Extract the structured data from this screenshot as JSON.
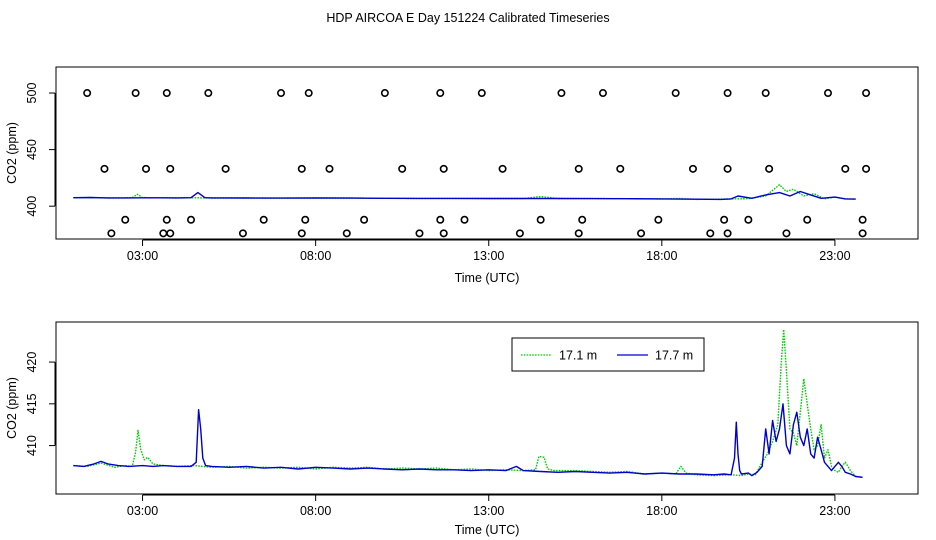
{
  "title": "HDP AIRCOA E  Day 151224  Calibrated Timeseries",
  "colors": {
    "green": "#00cc00",
    "blue": "#0000cc",
    "axis": "#000000"
  },
  "chart_data": [
    {
      "type": "scatter",
      "xlabel": "Time (UTC)",
      "ylabel": "CO2 (ppm)",
      "xlim": [
        0.5,
        25.4
      ],
      "ylim": [
        371,
        523
      ],
      "xticks": [
        3,
        8,
        13,
        18,
        23
      ],
      "xtick_labels": [
        "03:00",
        "08:00",
        "13:00",
        "18:00",
        "23:00"
      ],
      "yticks": [
        400,
        450,
        500
      ],
      "ytick_labels": [
        "400",
        "450",
        "500"
      ],
      "grid": false,
      "legend": "none",
      "reference_points": {
        "x": [
          1.4,
          1.9,
          2.1,
          2.5,
          2.8,
          3.1,
          3.6,
          3.7,
          3.7,
          3.8,
          3.8,
          4.4,
          4.9,
          5.4,
          5.9,
          6.5,
          7.0,
          7.6,
          7.6,
          7.7,
          7.8,
          8.4,
          8.9,
          9.4,
          10.0,
          10.5,
          11.0,
          11.6,
          11.6,
          11.7,
          11.7,
          12.3,
          12.8,
          13.4,
          13.9,
          14.5,
          15.1,
          15.6,
          15.6,
          15.7,
          16.3,
          16.8,
          17.4,
          17.9,
          18.4,
          18.9,
          19.4,
          19.8,
          19.9,
          19.9,
          19.9,
          20.5,
          21.0,
          21.1,
          21.6,
          22.2,
          22.8,
          23.3,
          23.8,
          23.8,
          23.9,
          23.9
        ]
      },
      "series": [
        {
          "name": "",
          "color": "green",
          "x": [
            1.0,
            1.5,
            2.0,
            2.5,
            2.7,
            2.85,
            3.0,
            3.5,
            4.0,
            4.5,
            5.0,
            6.0,
            7.0,
            8.0,
            9.0,
            10.0,
            11.0,
            12.0,
            13.0,
            14.0,
            14.5,
            15.0,
            16.0,
            17.0,
            18.0,
            18.5,
            19.0,
            19.5,
            20.0,
            20.5,
            21.0,
            21.4,
            21.6,
            21.8,
            22.1,
            22.4,
            22.7,
            23.0,
            23.3,
            23.6
          ],
          "y": [
            407.5,
            407.6,
            407.2,
            407.3,
            407.6,
            410.5,
            407.6,
            407.4,
            407.3,
            407.4,
            407.2,
            407.3,
            407.1,
            407.2,
            407.2,
            407.0,
            406.9,
            406.9,
            406.8,
            406.8,
            408.5,
            406.8,
            406.7,
            406.6,
            406.4,
            406.8,
            406.0,
            406.2,
            406.4,
            406.6,
            409.0,
            419.0,
            413.0,
            415.0,
            409.0,
            411.0,
            406.5,
            408.0,
            406.5,
            406.2
          ]
        },
        {
          "name": "",
          "color": "blue",
          "x": [
            1.0,
            1.5,
            2.0,
            2.5,
            3.0,
            3.5,
            4.0,
            4.4,
            4.6,
            4.8,
            5.0,
            6.0,
            7.0,
            8.0,
            9.0,
            10.0,
            11.0,
            12.0,
            13.0,
            14.0,
            15.0,
            16.0,
            17.0,
            18.0,
            19.0,
            19.7,
            20.0,
            20.2,
            20.6,
            21.0,
            21.4,
            21.7,
            22.0,
            22.3,
            22.6,
            23.0,
            23.3,
            23.6
          ],
          "y": [
            407.5,
            407.7,
            407.3,
            407.3,
            407.4,
            407.4,
            407.3,
            407.5,
            412.0,
            407.5,
            407.3,
            407.2,
            407.1,
            407.2,
            407.1,
            407.0,
            406.9,
            406.9,
            406.8,
            406.8,
            406.8,
            406.7,
            406.6,
            406.4,
            406.2,
            406.0,
            406.4,
            409.0,
            407.0,
            410.0,
            412.0,
            409.0,
            413.0,
            410.0,
            407.0,
            408.0,
            406.4,
            406.3
          ]
        }
      ]
    },
    {
      "type": "line",
      "xlabel": "Time (UTC)",
      "ylabel": "CO2 (ppm)",
      "xlim": [
        0.5,
        25.4
      ],
      "ylim": [
        404.2,
        424.8
      ],
      "xticks": [
        3,
        8,
        13,
        18,
        23
      ],
      "xtick_labels": [
        "03:00",
        "08:00",
        "13:00",
        "18:00",
        "23:00"
      ],
      "yticks": [
        410,
        415,
        420
      ],
      "ytick_labels": [
        "410",
        "415",
        "420"
      ],
      "grid": false,
      "legend": "top-right",
      "series": [
        {
          "name": "17.1 m",
          "color": "green",
          "x": [
            1.0,
            1.4,
            1.8,
            2.2,
            2.5,
            2.7,
            2.8,
            2.87,
            2.95,
            3.05,
            3.15,
            3.3,
            3.6,
            4.0,
            4.5,
            5.0,
            5.5,
            6.0,
            6.5,
            7.0,
            7.5,
            8.0,
            8.5,
            9.0,
            9.5,
            10.0,
            10.5,
            11.0,
            11.5,
            12.0,
            12.5,
            13.0,
            13.5,
            14.0,
            14.35,
            14.45,
            14.6,
            14.7,
            14.9,
            15.5,
            16.0,
            16.5,
            17.0,
            17.5,
            18.0,
            18.4,
            18.55,
            18.7,
            19.0,
            19.5,
            20.0,
            20.3,
            20.5,
            20.7,
            20.9,
            21.05,
            21.2,
            21.35,
            21.45,
            21.52,
            21.6,
            21.7,
            21.8,
            21.9,
            22.0,
            22.1,
            22.2,
            22.3,
            22.4,
            22.5,
            22.6,
            22.7,
            22.8,
            22.9,
            23.0,
            23.1,
            23.2,
            23.3,
            23.45,
            23.6,
            23.8
          ],
          "y": [
            407.6,
            407.5,
            407.9,
            407.4,
            407.6,
            407.5,
            409.2,
            411.8,
            409.5,
            408.3,
            408.6,
            407.8,
            407.6,
            407.5,
            407.6,
            407.4,
            407.5,
            407.3,
            407.4,
            407.3,
            407.4,
            407.2,
            407.4,
            407.3,
            407.4,
            407.2,
            407.3,
            407.2,
            407.3,
            407.1,
            407.2,
            407.0,
            407.1,
            407.0,
            407.1,
            408.7,
            408.6,
            407.2,
            407.0,
            407.0,
            406.9,
            406.8,
            406.9,
            406.6,
            406.7,
            406.6,
            407.5,
            406.7,
            406.5,
            406.4,
            406.5,
            406.4,
            406.6,
            406.5,
            408.0,
            409.0,
            410.5,
            412.5,
            420.0,
            423.9,
            419.0,
            412.0,
            411.5,
            410.0,
            414.0,
            418.0,
            415.0,
            412.0,
            409.5,
            410.0,
            412.5,
            408.5,
            409.5,
            407.5,
            407.0,
            406.8,
            407.5,
            408.0,
            407.0,
            406.3,
            406.2
          ]
        },
        {
          "name": "17.7 m",
          "color": "blue",
          "x": [
            1.0,
            1.3,
            1.6,
            1.8,
            2.0,
            2.3,
            2.6,
            3.0,
            3.3,
            3.6,
            4.0,
            4.4,
            4.55,
            4.62,
            4.68,
            4.74,
            4.82,
            5.0,
            5.5,
            6.0,
            6.5,
            7.0,
            7.5,
            8.0,
            8.5,
            9.0,
            9.5,
            10.0,
            10.5,
            11.0,
            11.5,
            12.0,
            12.5,
            13.0,
            13.5,
            13.8,
            14.0,
            14.5,
            15.0,
            15.5,
            16.0,
            16.5,
            17.0,
            17.5,
            18.0,
            18.5,
            19.0,
            19.5,
            19.8,
            20.0,
            20.1,
            20.15,
            20.2,
            20.25,
            20.3,
            20.5,
            20.6,
            20.75,
            20.9,
            21.0,
            21.1,
            21.2,
            21.3,
            21.4,
            21.5,
            21.6,
            21.7,
            21.8,
            21.9,
            22.0,
            22.1,
            22.2,
            22.3,
            22.4,
            22.5,
            22.6,
            22.7,
            22.8,
            22.9,
            23.0,
            23.1,
            23.2,
            23.3,
            23.45,
            23.6,
            23.8
          ],
          "y": [
            407.6,
            407.5,
            407.8,
            408.1,
            407.8,
            407.6,
            407.5,
            407.6,
            407.5,
            407.6,
            407.5,
            407.5,
            408.0,
            414.3,
            412.0,
            408.5,
            407.6,
            407.5,
            407.4,
            407.5,
            407.3,
            407.4,
            407.2,
            407.4,
            407.3,
            407.2,
            407.3,
            407.2,
            407.1,
            407.2,
            407.1,
            407.1,
            407.0,
            407.1,
            407.0,
            407.5,
            407.0,
            406.9,
            406.8,
            406.9,
            406.8,
            406.7,
            406.8,
            406.6,
            406.7,
            406.6,
            406.6,
            406.5,
            406.6,
            406.5,
            408.5,
            412.8,
            409.0,
            407.0,
            406.6,
            406.7,
            406.4,
            406.8,
            407.5,
            412.0,
            409.0,
            413.0,
            410.5,
            412.0,
            415.0,
            410.0,
            409.0,
            412.5,
            414.0,
            411.0,
            410.0,
            412.0,
            409.0,
            408.5,
            411.0,
            409.5,
            408.0,
            407.5,
            407.0,
            407.5,
            408.0,
            407.5,
            406.8,
            406.6,
            406.3,
            406.2
          ]
        }
      ]
    }
  ]
}
